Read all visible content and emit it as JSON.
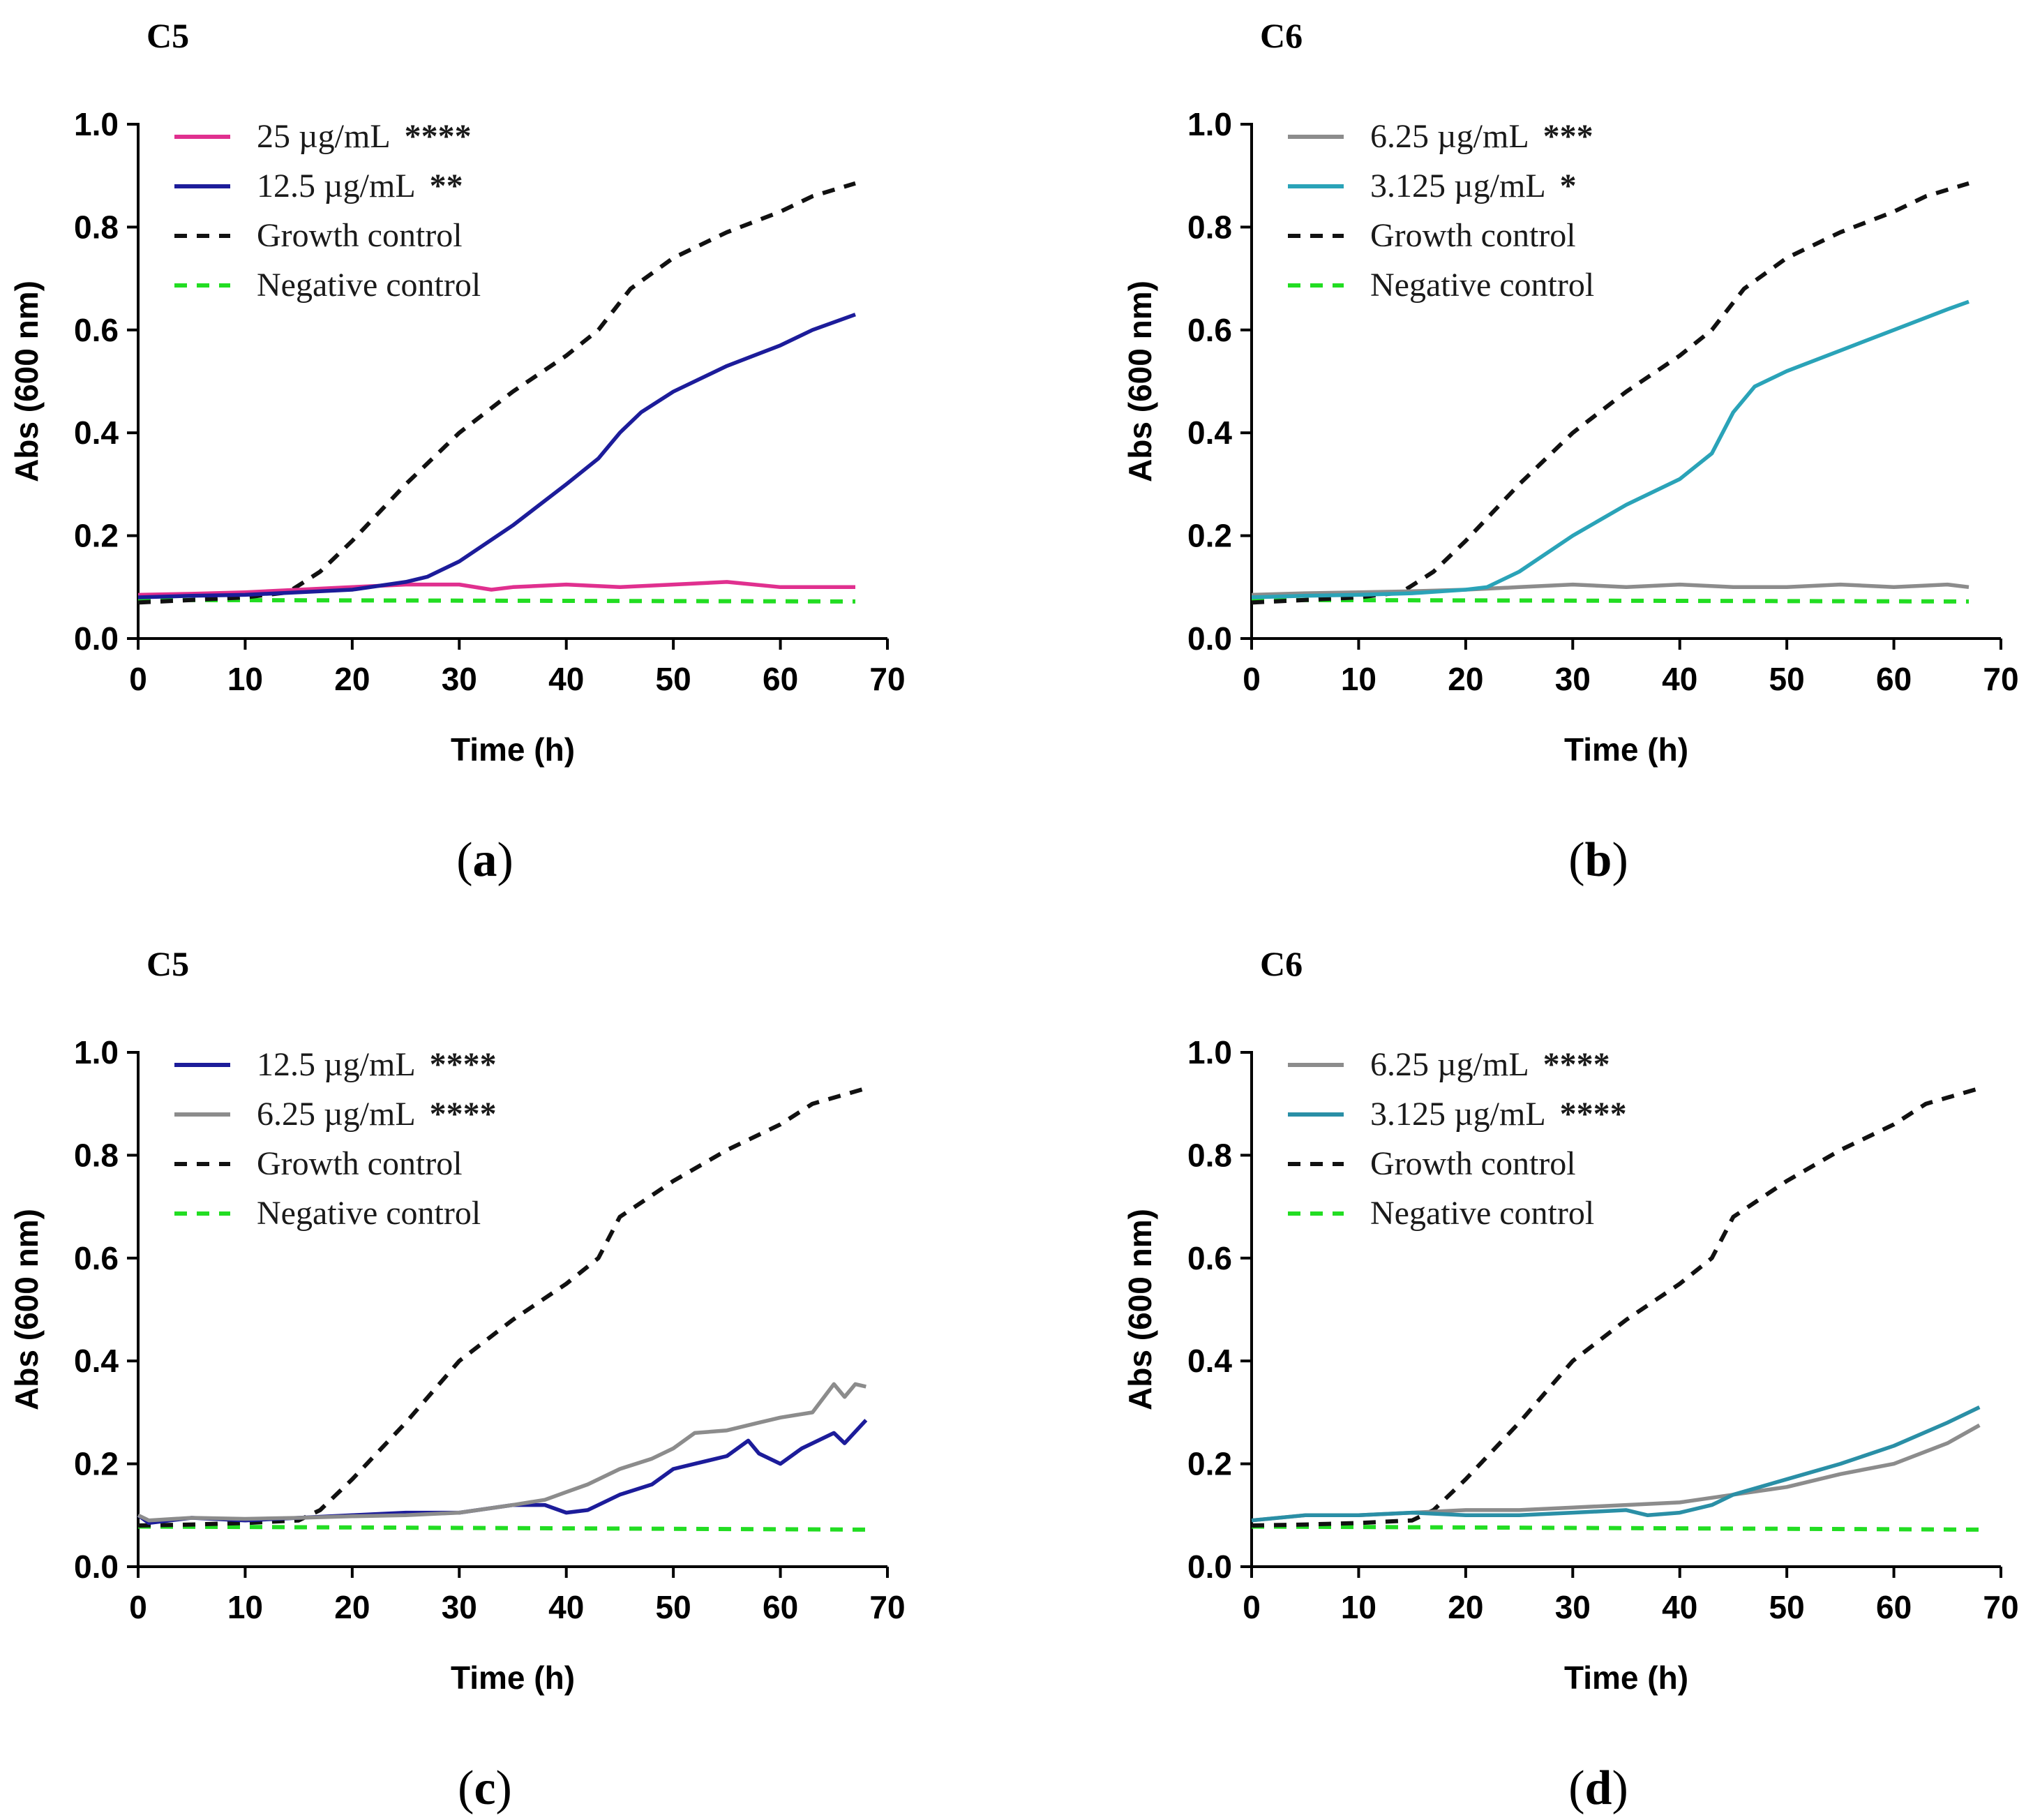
{
  "chart_data": [
    {
      "type": "line",
      "panel_label": "a",
      "title": "C5",
      "xlabel": "Time (h)",
      "ylabel": "Abs (600 nm)",
      "xlim": [
        0,
        70
      ],
      "ylim": [
        0,
        1.0
      ],
      "xticks": [
        "0",
        "10",
        "20",
        "30",
        "40",
        "50",
        "60",
        "70"
      ],
      "yticks": [
        "0.0",
        "0.2",
        "0.4",
        "0.6",
        "0.8",
        "1.0"
      ],
      "legend_position": "top-left",
      "series": [
        {
          "name": "25 µg/mL",
          "significance": "****",
          "color": "#e0308f",
          "dash": "solid",
          "x": [
            0,
            5,
            10,
            15,
            20,
            25,
            30,
            33,
            35,
            40,
            45,
            50,
            55,
            60,
            67
          ],
          "y": [
            0.085,
            0.087,
            0.09,
            0.095,
            0.1,
            0.105,
            0.105,
            0.095,
            0.1,
            0.105,
            0.1,
            0.105,
            0.11,
            0.1,
            0.1
          ]
        },
        {
          "name": "12.5 µg/mL",
          "significance": "**",
          "color": "#1c1c9a",
          "dash": "solid",
          "x": [
            0,
            5,
            10,
            15,
            20,
            25,
            27,
            30,
            35,
            40,
            43,
            45,
            47,
            50,
            55,
            60,
            63,
            67
          ],
          "y": [
            0.08,
            0.083,
            0.085,
            0.09,
            0.095,
            0.11,
            0.12,
            0.15,
            0.22,
            0.3,
            0.35,
            0.4,
            0.44,
            0.48,
            0.53,
            0.57,
            0.6,
            0.63
          ]
        },
        {
          "name": "Growth control",
          "significance": "",
          "color": "#111111",
          "dash": "dashed",
          "x": [
            0,
            5,
            10,
            14,
            17,
            20,
            25,
            30,
            35,
            40,
            43,
            46,
            50,
            55,
            60,
            63,
            67
          ],
          "y": [
            0.07,
            0.075,
            0.08,
            0.09,
            0.13,
            0.19,
            0.3,
            0.4,
            0.48,
            0.55,
            0.6,
            0.68,
            0.74,
            0.79,
            0.83,
            0.86,
            0.885
          ]
        },
        {
          "name": "Negative control",
          "significance": "",
          "color": "#22dd22",
          "dash": "dashed",
          "x": [
            0,
            67
          ],
          "y": [
            0.075,
            0.072
          ]
        }
      ]
    },
    {
      "type": "line",
      "panel_label": "b",
      "title": "C6",
      "xlabel": "Time (h)",
      "ylabel": "Abs (600 nm)",
      "xlim": [
        0,
        70
      ],
      "ylim": [
        0,
        1.0
      ],
      "xticks": [
        "0",
        "10",
        "20",
        "30",
        "40",
        "50",
        "60",
        "70"
      ],
      "yticks": [
        "0.0",
        "0.2",
        "0.4",
        "0.6",
        "0.8",
        "1.0"
      ],
      "legend_position": "top-left",
      "series": [
        {
          "name": "6.25 µg/mL",
          "significance": "***",
          "color": "#8c8c8c",
          "dash": "solid",
          "x": [
            0,
            5,
            10,
            15,
            20,
            25,
            30,
            35,
            40,
            45,
            50,
            55,
            60,
            65,
            67
          ],
          "y": [
            0.085,
            0.088,
            0.09,
            0.092,
            0.095,
            0.1,
            0.105,
            0.1,
            0.105,
            0.1,
            0.1,
            0.105,
            0.1,
            0.105,
            0.1
          ]
        },
        {
          "name": "3.125 µg/mL",
          "significance": "*",
          "color": "#2aa3b8",
          "dash": "solid",
          "x": [
            0,
            5,
            10,
            15,
            20,
            22,
            25,
            30,
            35,
            40,
            43,
            45,
            47,
            50,
            55,
            60,
            65,
            67
          ],
          "y": [
            0.08,
            0.083,
            0.085,
            0.088,
            0.095,
            0.1,
            0.13,
            0.2,
            0.26,
            0.31,
            0.36,
            0.44,
            0.49,
            0.52,
            0.56,
            0.6,
            0.64,
            0.655
          ]
        },
        {
          "name": "Growth control",
          "significance": "",
          "color": "#111111",
          "dash": "dashed",
          "x": [
            0,
            5,
            10,
            14,
            17,
            20,
            25,
            30,
            35,
            40,
            43,
            46,
            50,
            55,
            60,
            63,
            67
          ],
          "y": [
            0.07,
            0.075,
            0.08,
            0.09,
            0.13,
            0.19,
            0.3,
            0.4,
            0.48,
            0.55,
            0.6,
            0.68,
            0.74,
            0.79,
            0.83,
            0.86,
            0.885
          ]
        },
        {
          "name": "Negative control",
          "significance": "",
          "color": "#22dd22",
          "dash": "dashed",
          "x": [
            0,
            67
          ],
          "y": [
            0.075,
            0.072
          ]
        }
      ]
    },
    {
      "type": "line",
      "panel_label": "c",
      "title": "C5",
      "xlabel": "Time (h)",
      "ylabel": "Abs (600 nm)",
      "xlim": [
        0,
        70
      ],
      "ylim": [
        0,
        1.0
      ],
      "xticks": [
        "0",
        "10",
        "20",
        "30",
        "40",
        "50",
        "60",
        "70"
      ],
      "yticks": [
        "0.0",
        "0.2",
        "0.4",
        "0.6",
        "0.8",
        "1.0"
      ],
      "legend_position": "top-left",
      "series": [
        {
          "name": "12.5 µg/mL",
          "significance": "****",
          "color": "#1c1c9a",
          "dash": "solid",
          "x": [
            0,
            1,
            5,
            10,
            15,
            20,
            25,
            30,
            35,
            38,
            40,
            42,
            45,
            48,
            50,
            52,
            55,
            57,
            58,
            60,
            62,
            65,
            66,
            68
          ],
          "y": [
            0.1,
            0.085,
            0.095,
            0.09,
            0.095,
            0.1,
            0.105,
            0.105,
            0.12,
            0.12,
            0.105,
            0.11,
            0.14,
            0.16,
            0.19,
            0.2,
            0.215,
            0.245,
            0.22,
            0.2,
            0.23,
            0.26,
            0.24,
            0.285
          ]
        },
        {
          "name": "6.25 µg/mL",
          "significance": "****",
          "color": "#8c8c8c",
          "dash": "solid",
          "x": [
            0,
            1,
            5,
            10,
            15,
            20,
            25,
            30,
            35,
            38,
            40,
            42,
            45,
            48,
            50,
            52,
            55,
            58,
            60,
            63,
            65,
            66,
            67,
            68
          ],
          "y": [
            0.1,
            0.09,
            0.095,
            0.093,
            0.095,
            0.098,
            0.1,
            0.105,
            0.12,
            0.13,
            0.145,
            0.16,
            0.19,
            0.21,
            0.23,
            0.26,
            0.265,
            0.28,
            0.29,
            0.3,
            0.355,
            0.33,
            0.355,
            0.35
          ]
        },
        {
          "name": "Growth control",
          "significance": "",
          "color": "#111111",
          "dash": "dashed",
          "x": [
            0,
            5,
            10,
            15,
            17,
            20,
            25,
            30,
            35,
            40,
            43,
            45,
            50,
            55,
            60,
            63,
            68
          ],
          "y": [
            0.08,
            0.082,
            0.085,
            0.09,
            0.11,
            0.17,
            0.28,
            0.4,
            0.48,
            0.55,
            0.6,
            0.68,
            0.75,
            0.81,
            0.86,
            0.9,
            0.93
          ]
        },
        {
          "name": "Negative control",
          "significance": "",
          "color": "#22dd22",
          "dash": "dashed",
          "x": [
            0,
            68
          ],
          "y": [
            0.078,
            0.072
          ]
        }
      ]
    },
    {
      "type": "line",
      "panel_label": "d",
      "title": "C6",
      "xlabel": "Time (h)",
      "ylabel": "Abs (600 nm)",
      "xlim": [
        0,
        70
      ],
      "ylim": [
        0,
        1.0
      ],
      "xticks": [
        "0",
        "10",
        "20",
        "30",
        "40",
        "50",
        "60",
        "70"
      ],
      "yticks": [
        "0.0",
        "0.2",
        "0.4",
        "0.6",
        "0.8",
        "1.0"
      ],
      "legend_position": "top-left",
      "series": [
        {
          "name": "6.25 µg/mL",
          "significance": "****",
          "color": "#8c8c8c",
          "dash": "solid",
          "x": [
            0,
            5,
            10,
            15,
            20,
            25,
            30,
            35,
            40,
            45,
            50,
            55,
            60,
            65,
            68
          ],
          "y": [
            0.09,
            0.1,
            0.1,
            0.105,
            0.11,
            0.11,
            0.115,
            0.12,
            0.125,
            0.14,
            0.155,
            0.18,
            0.2,
            0.24,
            0.275
          ]
        },
        {
          "name": "3.125 µg/mL",
          "significance": "****",
          "color": "#2a8fa6",
          "dash": "solid",
          "x": [
            0,
            5,
            10,
            15,
            20,
            25,
            30,
            35,
            37,
            40,
            43,
            45,
            50,
            55,
            60,
            65,
            68
          ],
          "y": [
            0.09,
            0.1,
            0.1,
            0.105,
            0.1,
            0.1,
            0.105,
            0.11,
            0.1,
            0.105,
            0.12,
            0.14,
            0.17,
            0.2,
            0.235,
            0.28,
            0.31
          ]
        },
        {
          "name": "Growth control",
          "significance": "",
          "color": "#111111",
          "dash": "dashed",
          "x": [
            0,
            5,
            10,
            15,
            17,
            20,
            25,
            30,
            35,
            40,
            43,
            45,
            50,
            55,
            60,
            63,
            68
          ],
          "y": [
            0.08,
            0.082,
            0.085,
            0.09,
            0.11,
            0.17,
            0.28,
            0.4,
            0.48,
            0.55,
            0.6,
            0.68,
            0.75,
            0.81,
            0.86,
            0.9,
            0.93
          ]
        },
        {
          "name": "Negative control",
          "significance": "",
          "color": "#22dd22",
          "dash": "dashed",
          "x": [
            0,
            68
          ],
          "y": [
            0.078,
            0.072
          ]
        }
      ]
    }
  ]
}
